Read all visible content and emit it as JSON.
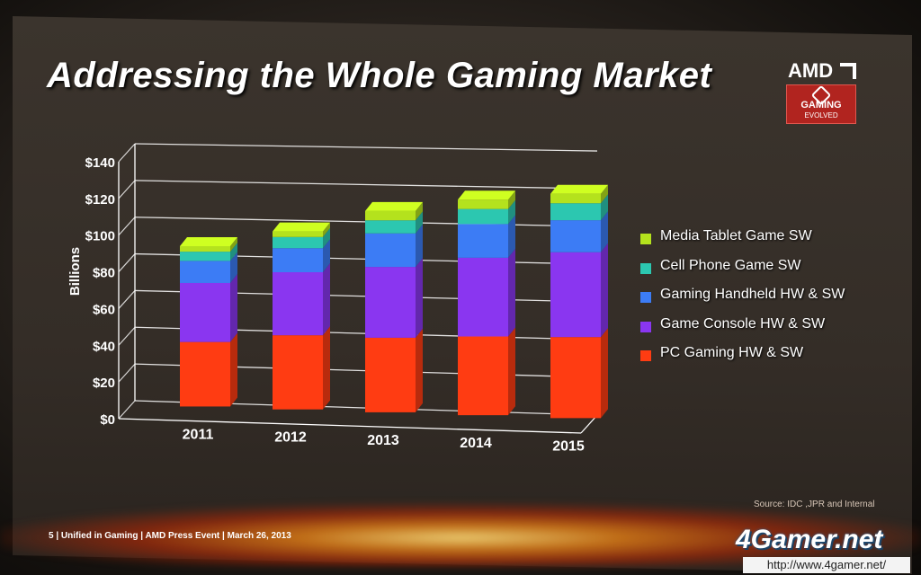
{
  "slide": {
    "title": "Addressing the Whole Gaming Market",
    "logo": {
      "brand": "AMD",
      "badge_line1": "GAMING",
      "badge_line2": "EVOLVED",
      "badge_color": "#b1241f"
    },
    "source": "Source:  IDC ,JPR and Internal",
    "footer": "5  |  Unified in Gaming  |  AMD Press Event  |  March 26, 2013"
  },
  "watermark": {
    "brand": "4Gamer.net",
    "url": "http://www.4gamer.net/"
  },
  "chart_data": {
    "type": "bar",
    "stacked": true,
    "three_d": true,
    "categories": [
      "2011",
      "2012",
      "2013",
      "2014",
      "2015"
    ],
    "ylabel": "Billions",
    "ylim": [
      0,
      140
    ],
    "yticks": [
      "$0",
      "$20",
      "$40",
      "$60",
      "$80",
      "$100",
      "$120",
      "$140"
    ],
    "grid": true,
    "legend_position": "right",
    "series": [
      {
        "name": "PC Gaming HW & SW",
        "color": "#ff3c12",
        "values": [
          35,
          40,
          40,
          42,
          43
        ]
      },
      {
        "name": "Game Console HW & SW",
        "color": "#8a36f0",
        "values": [
          32,
          34,
          38,
          42,
          45
        ]
      },
      {
        "name": "Gaming Handheld HW & SW",
        "color": "#3c7cf5",
        "values": [
          12,
          13,
          18,
          18,
          17
        ]
      },
      {
        "name": "Cell Phone Game SW",
        "color": "#2cc7b0",
        "values": [
          5,
          6,
          7,
          8,
          9
        ]
      },
      {
        "name": "Media Tablet Game SW",
        "color": "#b4e21d",
        "values": [
          3,
          3,
          5,
          5,
          5
        ]
      }
    ]
  }
}
